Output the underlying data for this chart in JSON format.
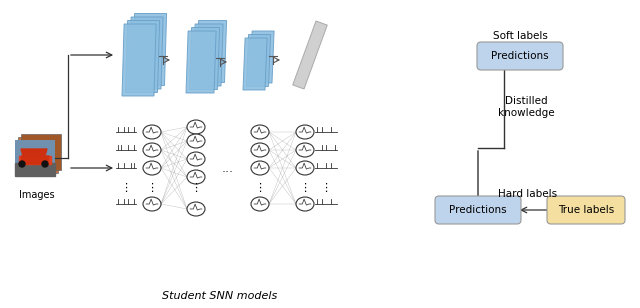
{
  "title": "Student SNN models",
  "soft_label": "Soft labels",
  "hard_label": "Hard labels",
  "predictions_text": "Predictions",
  "true_labels_text": "True labels",
  "distilled_text": "Distilled\nknowledge",
  "images_text": "Images",
  "predictions_color": "#bed4ed",
  "true_labels_color": "#f5dfa0",
  "cnn_layer_color": "#8dbfe0",
  "cnn_layer_color2": "#a8d0ec",
  "cnn_layer_edge": "#6aa0c8",
  "gray_layer_color": "#cccccc",
  "gray_layer_edge": "#aaaaaa",
  "background": "#ffffff",
  "fig_width": 6.4,
  "fig_height": 3.08
}
